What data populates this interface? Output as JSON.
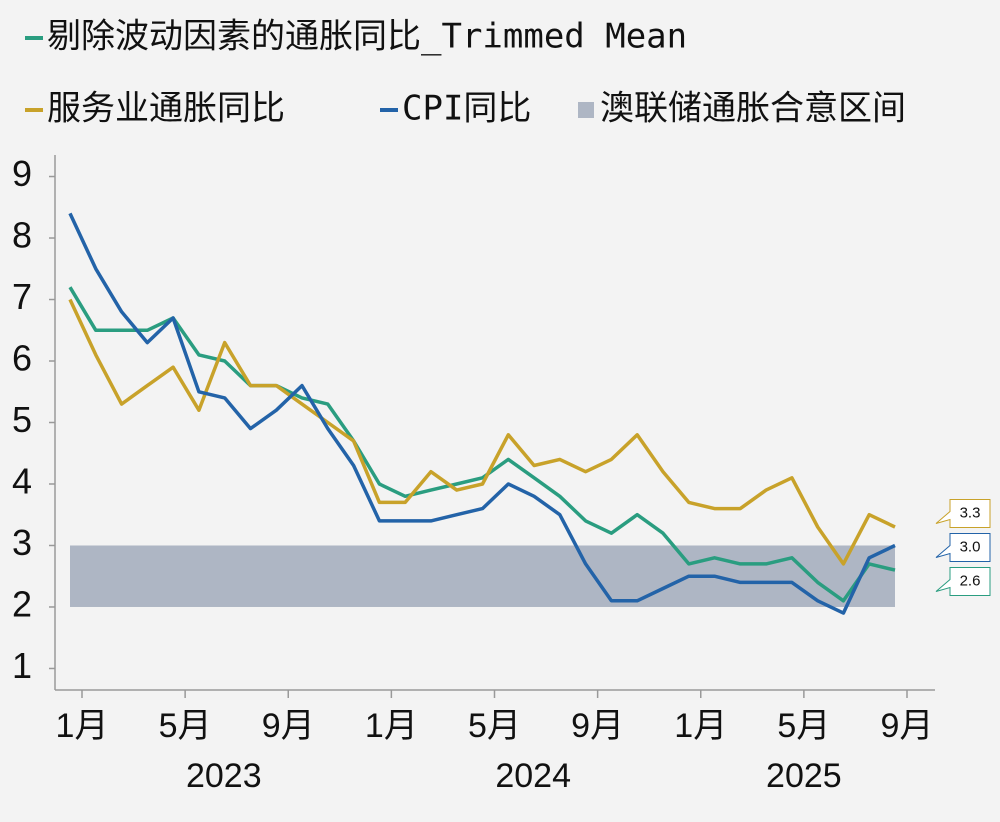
{
  "chart_data": {
    "type": "line",
    "categories": [
      "1月",
      null,
      null,
      null,
      "5月",
      null,
      null,
      null,
      "9月",
      null,
      null,
      null,
      "1月",
      null,
      null,
      null,
      "5月",
      null,
      null,
      null,
      "9月",
      null,
      null,
      null,
      "1月",
      null,
      null,
      null,
      "5月",
      null,
      null,
      null,
      "9月"
    ],
    "year_labels": [
      "2023",
      "2024",
      "2025"
    ],
    "series": [
      {
        "name": "剔除波动因素的通胀同比_Trimmed Mean",
        "color": "#2a9d80",
        "values": [
          7.2,
          6.5,
          6.5,
          6.5,
          6.7,
          6.1,
          6.0,
          5.6,
          5.6,
          5.4,
          5.3,
          4.7,
          4.0,
          3.8,
          3.9,
          4.0,
          4.1,
          4.4,
          4.1,
          3.8,
          3.4,
          3.2,
          3.5,
          3.2,
          2.7,
          2.8,
          2.7,
          2.7,
          2.8,
          2.4,
          2.1,
          2.7,
          2.6
        ],
        "value_labels": [
          null,
          null,
          null,
          null,
          null,
          null,
          null,
          null,
          null,
          null,
          null,
          null,
          null,
          null,
          null,
          null,
          null,
          null,
          null,
          null,
          null,
          null,
          null,
          null,
          null,
          null,
          null,
          null,
          null,
          null,
          null,
          null,
          "2.6"
        ]
      },
      {
        "name": "服务业通胀同比",
        "color": "#c8a22a",
        "values": [
          7.0,
          6.1,
          5.3,
          5.6,
          5.9,
          5.2,
          6.3,
          5.6,
          5.6,
          5.3,
          5.0,
          4.7,
          3.7,
          3.7,
          4.2,
          3.9,
          4.0,
          4.8,
          4.3,
          4.4,
          4.2,
          4.4,
          4.8,
          4.2,
          3.7,
          3.6,
          3.6,
          3.9,
          4.1,
          3.3,
          2.7,
          3.5,
          3.3
        ],
        "value_labels": [
          null,
          null,
          null,
          null,
          null,
          null,
          null,
          null,
          null,
          null,
          null,
          null,
          null,
          null,
          null,
          null,
          null,
          null,
          null,
          null,
          null,
          null,
          null,
          null,
          null,
          null,
          null,
          null,
          null,
          null,
          null,
          null,
          "3.3"
        ]
      },
      {
        "name": "CPI同比",
        "color": "#2363a8",
        "values": [
          8.4,
          7.5,
          6.8,
          6.3,
          6.7,
          5.5,
          5.4,
          4.9,
          5.2,
          5.6,
          4.9,
          4.3,
          3.4,
          3.4,
          3.4,
          3.5,
          3.6,
          4.0,
          3.8,
          3.5,
          2.7,
          2.1,
          2.1,
          2.3,
          2.5,
          2.5,
          2.4,
          2.4,
          2.4,
          2.1,
          1.9,
          2.8,
          3.0
        ],
        "value_labels": [
          null,
          null,
          null,
          null,
          null,
          null,
          null,
          null,
          null,
          null,
          null,
          null,
          null,
          null,
          null,
          null,
          null,
          null,
          null,
          null,
          null,
          null,
          null,
          null,
          null,
          null,
          null,
          null,
          null,
          null,
          null,
          null,
          "3.0"
        ]
      }
    ],
    "band": {
      "name": "澳联储通胀合意区间",
      "color": "#aeb6c4",
      "range": [
        2,
        3
      ]
    },
    "ylim": [
      0.65,
      9.35
    ],
    "yticks": [
      1,
      2,
      3,
      4,
      5,
      6,
      7,
      8,
      9
    ]
  }
}
